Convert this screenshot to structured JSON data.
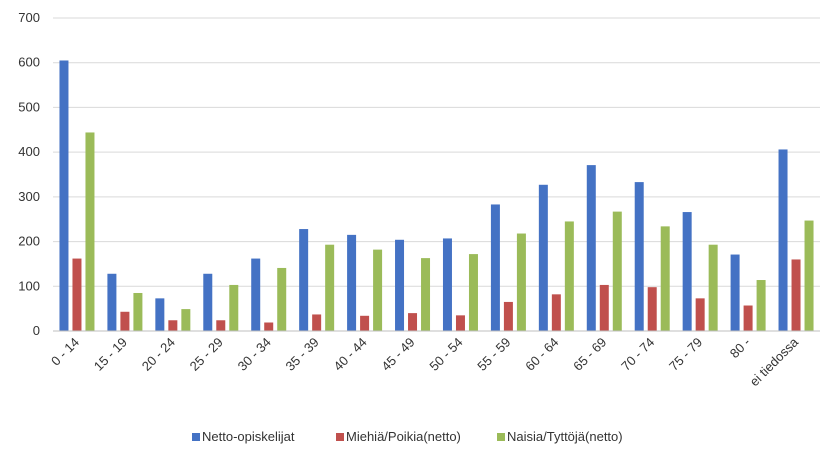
{
  "chart_data": {
    "type": "bar",
    "title": "",
    "xlabel": "",
    "ylabel": "",
    "ylim": [
      0,
      700
    ],
    "yticks": [
      0,
      100,
      200,
      300,
      400,
      500,
      600,
      700
    ],
    "grid": true,
    "legend_position": "bottom",
    "categories": [
      "0 - 14",
      "15 - 19",
      "20 - 24",
      "25 - 29",
      "30 - 34",
      "35 - 39",
      "40 - 44",
      "45 - 49",
      "50 - 54",
      "55 - 59",
      "60 - 64",
      "65 - 69",
      "70 - 74",
      "75 - 79",
      "80 -",
      "ei tiedossa"
    ],
    "series": [
      {
        "name": "Netto-opiskelijat",
        "color": "#4472C4",
        "values": [
          605,
          128,
          73,
          128,
          162,
          228,
          215,
          204,
          207,
          283,
          327,
          371,
          333,
          266,
          171,
          406
        ]
      },
      {
        "name": "Miehiä/Poikia(netto)",
        "color": "#C0504D",
        "values": [
          162,
          43,
          24,
          24,
          19,
          37,
          34,
          40,
          35,
          65,
          82,
          103,
          98,
          73,
          57,
          160
        ]
      },
      {
        "name": "Naisia/Tyttöjä(netto)",
        "color": "#9BBB59",
        "values": [
          444,
          85,
          49,
          103,
          141,
          193,
          182,
          163,
          172,
          218,
          245,
          267,
          234,
          193,
          114,
          247
        ]
      }
    ]
  }
}
